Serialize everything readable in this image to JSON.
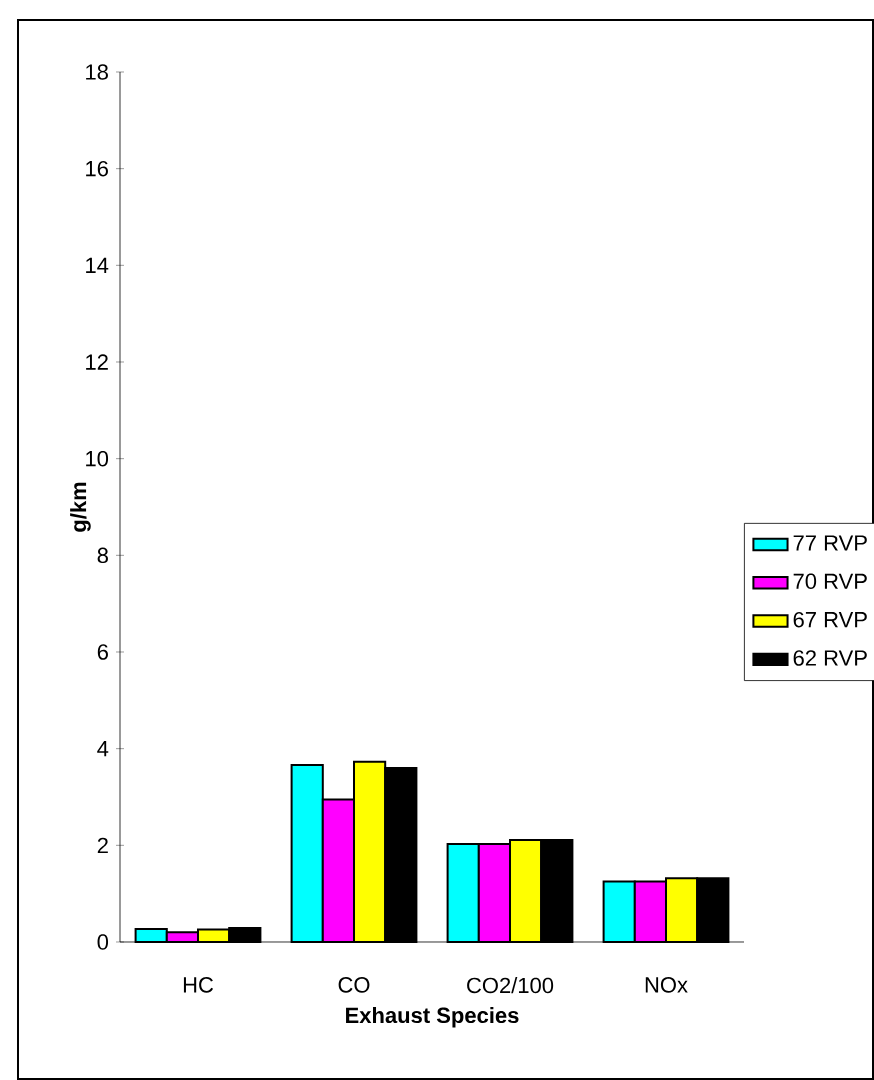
{
  "chart_data": {
    "type": "bar",
    "xlabel": "Exhaust Species",
    "ylabel": "g/km",
    "categories": [
      "HC",
      "CO",
      "CO2/100",
      "NOx"
    ],
    "series": [
      {
        "name": "77 RVP",
        "color": "#00ffff",
        "values": [
          0.27,
          3.66,
          2.03,
          1.25
        ]
      },
      {
        "name": "70 RVP",
        "color": "#ff00ff",
        "values": [
          0.2,
          2.95,
          2.03,
          1.25
        ]
      },
      {
        "name": "67 RVP",
        "color": "#ffff00",
        "values": [
          0.26,
          3.73,
          2.11,
          1.32
        ]
      },
      {
        "name": "62 RVP",
        "color": "#000000",
        "values": [
          0.29,
          3.6,
          2.11,
          1.32
        ]
      }
    ],
    "ylim": [
      0,
      18
    ],
    "yticks": [
      0,
      2,
      4,
      6,
      8,
      10,
      12,
      14,
      16,
      18
    ],
    "grid": false,
    "legend": "right"
  }
}
